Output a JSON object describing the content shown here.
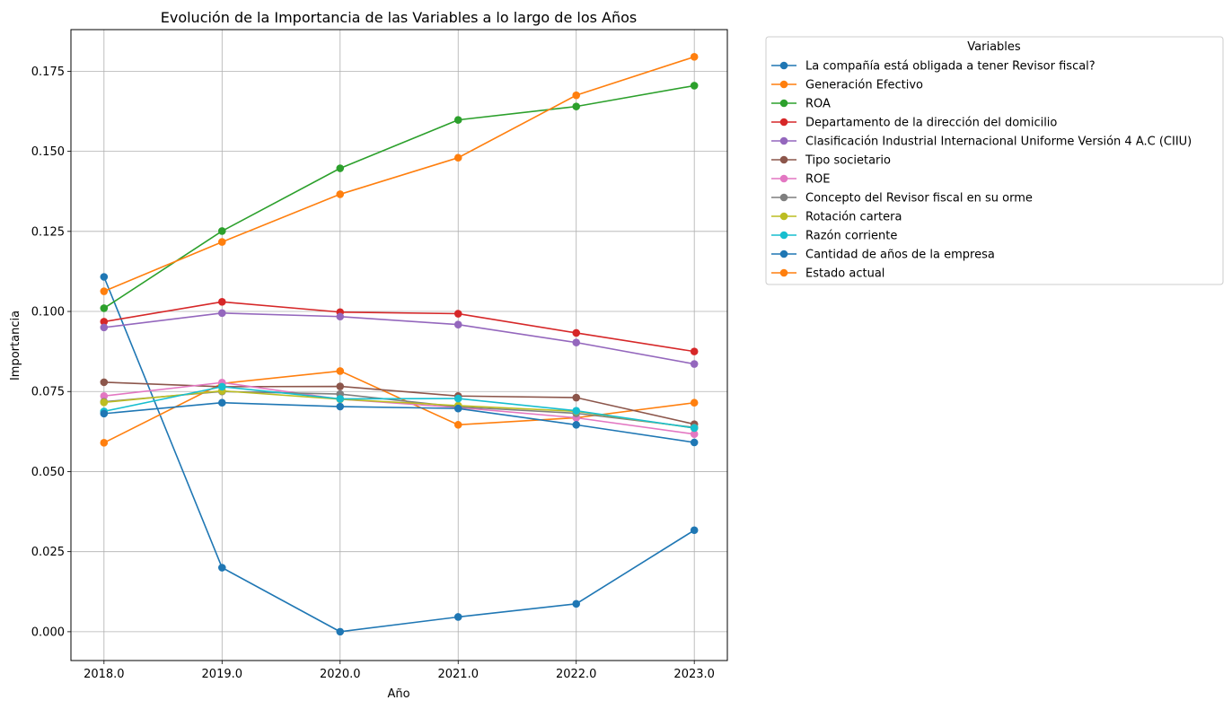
{
  "chart_data": {
    "type": "line",
    "title": "Evolución de la Importancia de las Variables a lo largo de los Años",
    "xlabel": "Año",
    "ylabel": "Importancia",
    "x": [
      2018.0,
      2019.0,
      2020.0,
      2021.0,
      2022.0,
      2023.0
    ],
    "x_tick_labels": [
      "2018.0",
      "2019.0",
      "2020.0",
      "2021.0",
      "2022.0",
      "2023.0"
    ],
    "y_ticks": [
      0.0,
      0.025,
      0.05,
      0.075,
      0.1,
      0.125,
      0.15,
      0.175
    ],
    "y_tick_labels": [
      "0.000",
      "0.025",
      "0.050",
      "0.075",
      "0.100",
      "0.125",
      "0.150",
      "0.175"
    ],
    "xlim": [
      2017.72,
      2023.28
    ],
    "ylim": [
      -0.009,
      0.188
    ],
    "grid": true,
    "legend_title": "Variables",
    "legend_position": "outside-right",
    "series": [
      {
        "name": "La compañía está obligada a tener Revisor fiscal?",
        "color": "#1f77b4",
        "values": [
          0.1108,
          0.02,
          0.0,
          0.0046,
          0.0087,
          0.0317
        ]
      },
      {
        "name": "Generación Efectivo",
        "color": "#ff7f0e",
        "values": [
          0.059,
          0.0775,
          0.0814,
          0.0646,
          0.0668,
          0.0715
        ]
      },
      {
        "name": "ROA",
        "color": "#2ca02c",
        "values": [
          0.101,
          0.1251,
          0.1447,
          0.1598,
          0.164,
          0.1705
        ]
      },
      {
        "name": "Departamento de la dirección del domicilio",
        "color": "#d62728",
        "values": [
          0.0968,
          0.103,
          0.0998,
          0.0993,
          0.0933,
          0.0875
        ]
      },
      {
        "name": "Clasificación Industrial Internacional Uniforme Versión 4 A.C (CIIU)",
        "color": "#9467bd",
        "values": [
          0.095,
          0.0995,
          0.0984,
          0.0959,
          0.0903,
          0.0836
        ]
      },
      {
        "name": "Tipo societario",
        "color": "#8c564b",
        "values": [
          0.0779,
          0.0765,
          0.0766,
          0.0736,
          0.0731,
          0.0648
        ]
      },
      {
        "name": "ROE",
        "color": "#e377c2",
        "values": [
          0.0736,
          0.0778,
          0.0726,
          0.07,
          0.0668,
          0.0617
        ]
      },
      {
        "name": "Concepto del Revisor fiscal en su orme",
        "color": "#7f7f7f",
        "values": [
          0.0718,
          0.075,
          0.0742,
          0.0702,
          0.0682,
          0.0638
        ]
      },
      {
        "name": "Rotación cartera",
        "color": "#bcbd22",
        "values": [
          0.0716,
          0.0752,
          0.0726,
          0.0706,
          0.0688,
          0.0636
        ]
      },
      {
        "name": "Razón corriente",
        "color": "#17becf",
        "values": [
          0.0688,
          0.0765,
          0.0727,
          0.0728,
          0.069,
          0.0636
        ]
      },
      {
        "name": "Cantidad de años de la empresa",
        "color": "#1f77b4",
        "values": [
          0.0681,
          0.0715,
          0.0703,
          0.0697,
          0.0646,
          0.0591
        ]
      },
      {
        "name": "Estado actual",
        "color": "#ff7f0e",
        "values": [
          0.1063,
          0.1217,
          0.1366,
          0.148,
          0.1675,
          0.1795
        ]
      }
    ]
  }
}
